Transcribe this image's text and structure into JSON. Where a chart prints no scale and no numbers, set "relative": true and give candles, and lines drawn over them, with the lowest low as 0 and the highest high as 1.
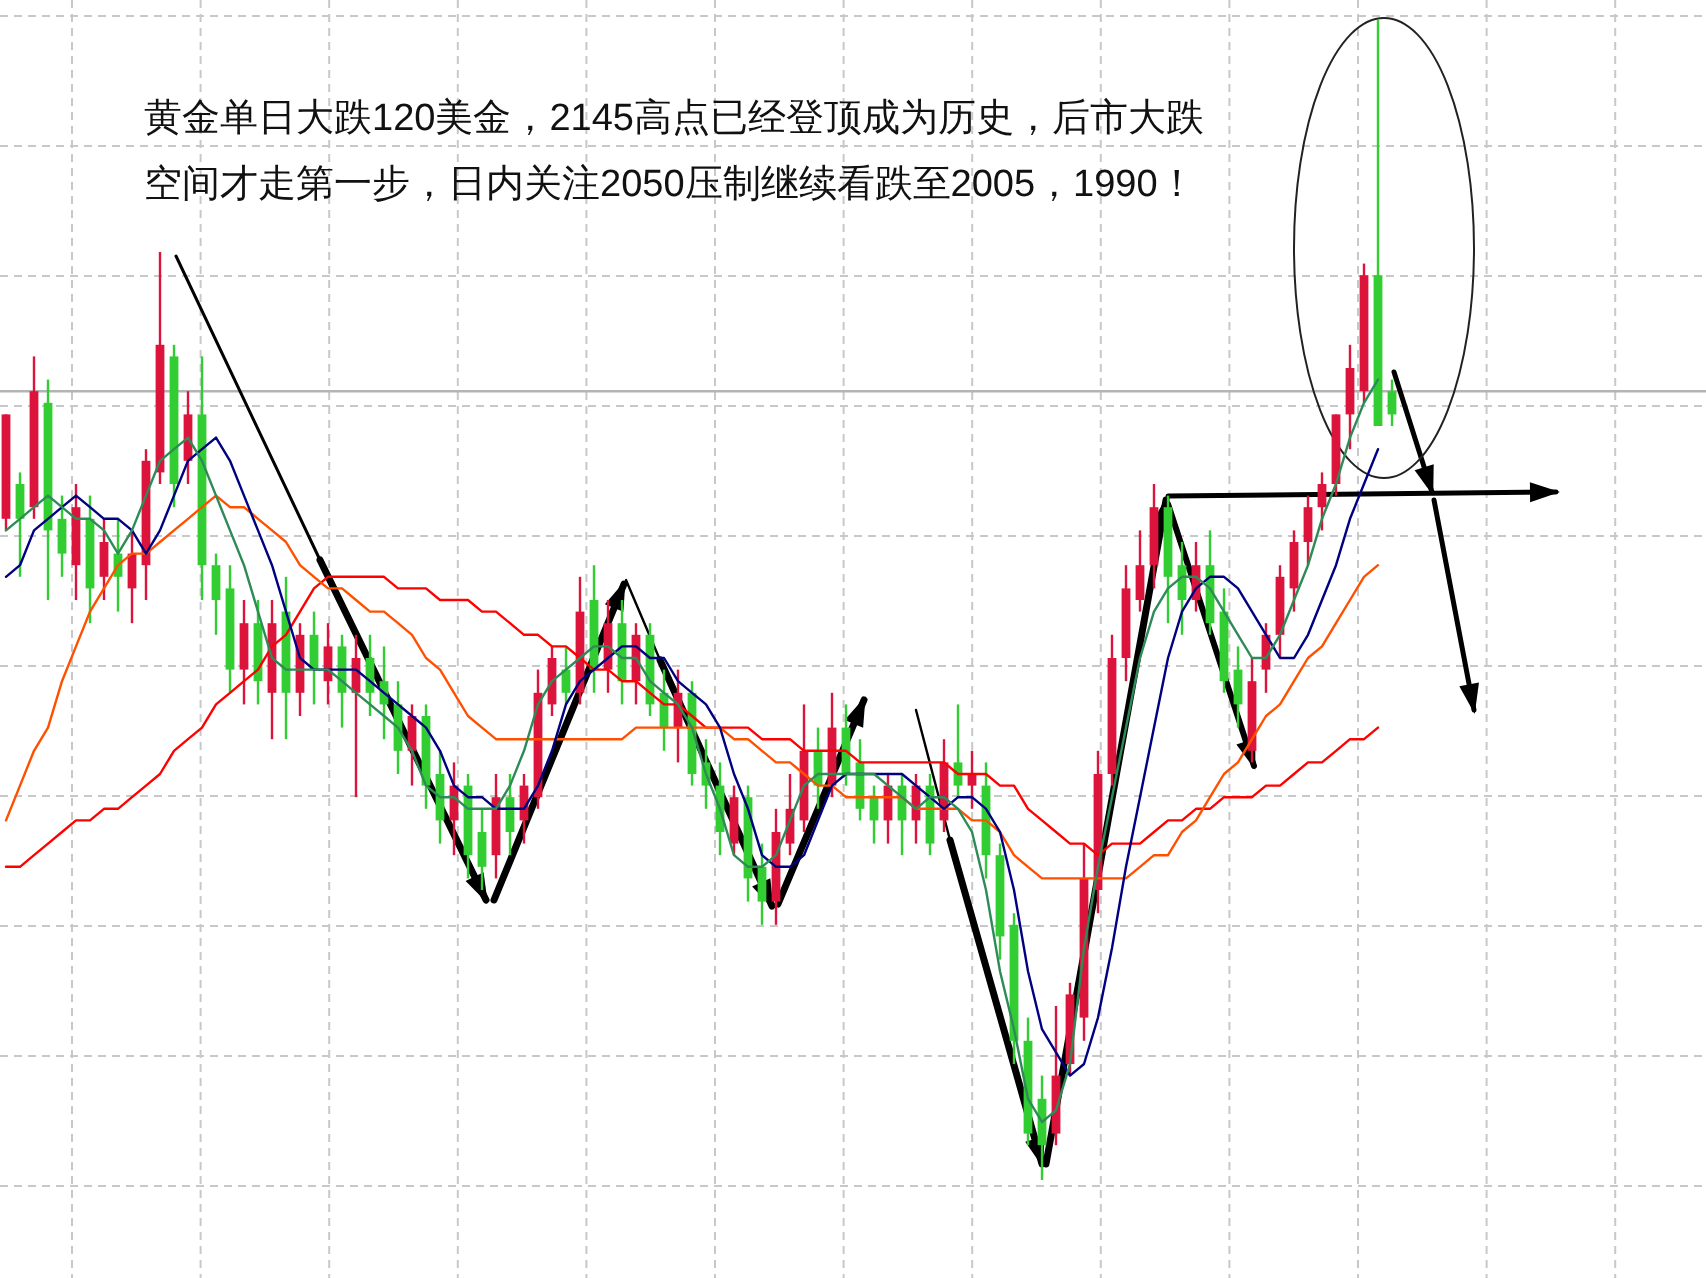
{
  "chart_data": {
    "type": "candlestick",
    "relative": true,
    "grid": true,
    "annotations": [
      "黄金单日大跌120美金，2145高点已经登顶成为历史，后市大跌空间才走第一步，日内关注2050压制继续看跌至2005，1990！"
    ],
    "categories": [
      null,
      null,
      null,
      null,
      null,
      null,
      null,
      null,
      null,
      null,
      null,
      null,
      null,
      null,
      null,
      null,
      null,
      null,
      null,
      null,
      null,
      null,
      null,
      null,
      null,
      null,
      null,
      null,
      null,
      null,
      null,
      null,
      null,
      null,
      null,
      null,
      null,
      null,
      null,
      null,
      null,
      null,
      null,
      null,
      null,
      null,
      null,
      null,
      null,
      null,
      null,
      null,
      null,
      null,
      null,
      null,
      null,
      null,
      null,
      null,
      null,
      null,
      null,
      null,
      null,
      null,
      null,
      null,
      null,
      null,
      null,
      null,
      null,
      null,
      null,
      null,
      null,
      null,
      null,
      null,
      null,
      null,
      null,
      null,
      null,
      null,
      null,
      null,
      null,
      null,
      null,
      null,
      null,
      null,
      null,
      null,
      null,
      null,
      null,
      null
    ],
    "ohlc": [
      [
        0.57,
        0.66,
        0.56,
        0.66
      ],
      [
        0.6,
        0.61,
        0.52,
        0.57
      ],
      [
        0.58,
        0.71,
        0.57,
        0.68
      ],
      [
        0.67,
        0.69,
        0.5,
        0.56
      ],
      [
        0.57,
        0.59,
        0.52,
        0.54
      ],
      [
        0.53,
        0.6,
        0.5,
        0.58
      ],
      [
        0.57,
        0.59,
        0.48,
        0.51
      ],
      [
        0.52,
        0.57,
        0.5,
        0.55
      ],
      [
        0.54,
        0.57,
        0.49,
        0.52
      ],
      [
        0.51,
        0.56,
        0.48,
        0.54
      ],
      [
        0.53,
        0.63,
        0.5,
        0.62
      ],
      [
        0.61,
        0.8,
        0.6,
        0.72
      ],
      [
        0.71,
        0.72,
        0.58,
        0.6
      ],
      [
        0.62,
        0.68,
        0.6,
        0.66
      ],
      [
        0.66,
        0.71,
        0.5,
        0.53
      ],
      [
        0.53,
        0.54,
        0.47,
        0.5
      ],
      [
        0.51,
        0.53,
        0.42,
        0.44
      ],
      [
        0.44,
        0.5,
        0.41,
        0.48
      ],
      [
        0.48,
        0.5,
        0.41,
        0.43
      ],
      [
        0.42,
        0.5,
        0.38,
        0.48
      ],
      [
        0.49,
        0.52,
        0.38,
        0.42
      ],
      [
        0.42,
        0.48,
        0.4,
        0.47
      ],
      [
        0.47,
        0.49,
        0.41,
        0.44
      ],
      [
        0.43,
        0.48,
        0.41,
        0.46
      ],
      [
        0.46,
        0.47,
        0.39,
        0.42
      ],
      [
        0.42,
        0.47,
        0.33,
        0.45
      ],
      [
        0.45,
        0.47,
        0.4,
        0.42
      ],
      [
        0.43,
        0.46,
        0.38,
        0.41
      ],
      [
        0.41,
        0.43,
        0.35,
        0.37
      ],
      [
        0.37,
        0.41,
        0.34,
        0.4
      ],
      [
        0.4,
        0.41,
        0.32,
        0.34
      ],
      [
        0.35,
        0.37,
        0.29,
        0.31
      ],
      [
        0.31,
        0.36,
        0.28,
        0.34
      ],
      [
        0.34,
        0.35,
        0.26,
        0.28
      ],
      [
        0.3,
        0.32,
        0.25,
        0.27
      ],
      [
        0.28,
        0.35,
        0.26,
        0.33
      ],
      [
        0.33,
        0.35,
        0.28,
        0.3
      ],
      [
        0.31,
        0.35,
        0.29,
        0.34
      ],
      [
        0.33,
        0.44,
        0.32,
        0.42
      ],
      [
        0.41,
        0.46,
        0.4,
        0.45
      ],
      [
        0.44,
        0.46,
        0.41,
        0.42
      ],
      [
        0.42,
        0.52,
        0.41,
        0.49
      ],
      [
        0.5,
        0.53,
        0.42,
        0.44
      ],
      [
        0.44,
        0.5,
        0.42,
        0.48
      ],
      [
        0.48,
        0.5,
        0.41,
        0.43
      ],
      [
        0.43,
        0.48,
        0.41,
        0.47
      ],
      [
        0.47,
        0.48,
        0.4,
        0.41
      ],
      [
        0.42,
        0.44,
        0.37,
        0.39
      ],
      [
        0.39,
        0.44,
        0.36,
        0.42
      ],
      [
        0.42,
        0.43,
        0.34,
        0.35
      ],
      [
        0.36,
        0.38,
        0.32,
        0.34
      ],
      [
        0.34,
        0.36,
        0.28,
        0.3
      ],
      [
        0.29,
        0.34,
        0.28,
        0.33
      ],
      [
        0.33,
        0.34,
        0.24,
        0.26
      ],
      [
        0.27,
        0.29,
        0.22,
        0.24
      ],
      [
        0.24,
        0.32,
        0.22,
        0.3
      ],
      [
        0.29,
        0.35,
        0.28,
        0.32
      ],
      [
        0.31,
        0.41,
        0.3,
        0.37
      ],
      [
        0.37,
        0.39,
        0.32,
        0.34
      ],
      [
        0.34,
        0.42,
        0.33,
        0.39
      ],
      [
        0.39,
        0.41,
        0.34,
        0.35
      ],
      [
        0.36,
        0.38,
        0.31,
        0.32
      ],
      [
        0.33,
        0.34,
        0.29,
        0.31
      ],
      [
        0.31,
        0.35,
        0.29,
        0.34
      ],
      [
        0.34,
        0.35,
        0.28,
        0.31
      ],
      [
        0.31,
        0.35,
        0.29,
        0.34
      ],
      [
        0.34,
        0.35,
        0.28,
        0.29
      ],
      [
        0.31,
        0.38,
        0.3,
        0.36
      ],
      [
        0.36,
        0.41,
        0.33,
        0.34
      ],
      [
        0.34,
        0.37,
        0.32,
        0.35
      ],
      [
        0.34,
        0.36,
        0.26,
        0.28
      ],
      [
        0.28,
        0.29,
        0.19,
        0.21
      ],
      [
        0.22,
        0.23,
        0.1,
        0.12
      ],
      [
        0.12,
        0.14,
        0.03,
        0.04
      ],
      [
        0.07,
        0.09,
        0.0,
        0.03
      ],
      [
        0.04,
        0.15,
        0.03,
        0.09
      ],
      [
        0.1,
        0.17,
        0.09,
        0.16
      ],
      [
        0.14,
        0.29,
        0.12,
        0.26
      ],
      [
        0.25,
        0.37,
        0.23,
        0.35
      ],
      [
        0.35,
        0.47,
        0.34,
        0.45
      ],
      [
        0.45,
        0.53,
        0.43,
        0.51
      ],
      [
        0.5,
        0.56,
        0.49,
        0.53
      ],
      [
        0.53,
        0.6,
        0.51,
        0.58
      ],
      [
        0.58,
        0.59,
        0.48,
        0.52
      ],
      [
        0.53,
        0.55,
        0.47,
        0.5
      ],
      [
        0.5,
        0.55,
        0.49,
        0.53
      ],
      [
        0.53,
        0.56,
        0.47,
        0.48
      ],
      [
        0.49,
        0.51,
        0.42,
        0.43
      ],
      [
        0.44,
        0.46,
        0.39,
        0.41
      ],
      [
        0.37,
        0.45,
        0.36,
        0.43
      ],
      [
        0.44,
        0.48,
        0.42,
        0.47
      ],
      [
        0.47,
        0.53,
        0.45,
        0.52
      ],
      [
        0.51,
        0.56,
        0.49,
        0.55
      ],
      [
        0.55,
        0.59,
        0.53,
        0.58
      ],
      [
        0.58,
        0.61,
        0.56,
        0.6
      ],
      [
        0.6,
        0.66,
        0.59,
        0.66
      ],
      [
        0.66,
        0.72,
        0.63,
        0.7
      ],
      [
        0.68,
        0.79,
        0.67,
        0.78
      ],
      [
        0.78,
        1.0,
        0.65,
        0.65
      ],
      [
        0.68,
        0.69,
        0.65,
        0.66
      ]
    ],
    "colors": [
      "#dc143c",
      "#32cd32",
      "#dc143c",
      "#32cd32",
      "#32cd32",
      "#dc143c",
      "#32cd32",
      "#dc143c",
      "#32cd32",
      "#dc143c",
      "#dc143c",
      "#dc143c",
      "#32cd32",
      "#dc143c",
      "#32cd32",
      "#32cd32",
      "#32cd32",
      "#dc143c",
      "#32cd32",
      "#dc143c",
      "#32cd32",
      "#dc143c",
      "#32cd32",
      "#dc143c",
      "#32cd32",
      "#dc143c",
      "#32cd32",
      "#32cd32",
      "#32cd32",
      "#dc143c",
      "#32cd32",
      "#32cd32",
      "#dc143c",
      "#32cd32",
      "#32cd32",
      "#dc143c",
      "#32cd32",
      "#dc143c",
      "#dc143c",
      "#dc143c",
      "#32cd32",
      "#dc143c",
      "#32cd32",
      "#dc143c",
      "#32cd32",
      "#dc143c",
      "#32cd32",
      "#32cd32",
      "#dc143c",
      "#32cd32",
      "#32cd32",
      "#32cd32",
      "#dc143c",
      "#32cd32",
      "#32cd32",
      "#dc143c",
      "#dc143c",
      "#dc143c",
      "#32cd32",
      "#dc143c",
      "#32cd32",
      "#32cd32",
      "#32cd32",
      "#dc143c",
      "#32cd32",
      "#dc143c",
      "#32cd32",
      "#dc143c",
      "#32cd32",
      "#dc143c",
      "#32cd32",
      "#32cd32",
      "#32cd32",
      "#32cd32",
      "#32cd32",
      "#dc143c",
      "#dc143c",
      "#dc143c",
      "#dc143c",
      "#dc143c",
      "#dc143c",
      "#dc143c",
      "#dc143c",
      "#32cd32",
      "#32cd32",
      "#dc143c",
      "#32cd32",
      "#32cd32",
      "#32cd32",
      "#dc143c",
      "#dc143c",
      "#dc143c",
      "#dc143c",
      "#dc143c",
      "#dc143c",
      "#dc143c",
      "#dc143c",
      "#dc143c",
      "#32cd32",
      "#32cd32"
    ],
    "ref_lines": [
      {
        "axis": "y",
        "value": 0.68,
        "color": "#b4b4b4"
      }
    ],
    "series": [
      {
        "type": "line",
        "color": "#ff0000",
        "values": [
          0.27,
          0.27,
          0.28,
          0.29,
          0.3,
          0.31,
          0.31,
          0.32,
          0.32,
          0.33,
          0.34,
          0.35,
          0.37,
          0.38,
          0.39,
          0.41,
          0.42,
          0.43,
          0.44,
          0.46,
          0.47,
          0.49,
          0.51,
          0.52,
          0.52,
          0.52,
          0.52,
          0.52,
          0.51,
          0.51,
          0.51,
          0.5,
          0.5,
          0.5,
          0.49,
          0.49,
          0.48,
          0.47,
          0.47,
          0.46,
          0.46,
          0.45,
          0.44,
          0.44,
          0.43,
          0.43,
          0.42,
          0.41,
          0.41,
          0.4,
          0.39,
          0.39,
          0.39,
          0.39,
          0.38,
          0.38,
          0.38,
          0.37,
          0.37,
          0.37,
          0.37,
          0.36,
          0.36,
          0.36,
          0.36,
          0.36,
          0.36,
          0.36,
          0.35,
          0.35,
          0.35,
          0.34,
          0.34,
          0.32,
          0.31,
          0.3,
          0.29,
          0.29,
          0.28,
          0.29,
          0.29,
          0.29,
          0.3,
          0.31,
          0.31,
          0.32,
          0.32,
          0.33,
          0.33,
          0.33,
          0.34,
          0.34,
          0.35,
          0.36,
          0.36,
          0.37,
          0.38,
          0.38,
          0.39,
          null
        ]
      },
      {
        "type": "line",
        "color": "#ff5000",
        "values": [
          0.31,
          0.34,
          0.37,
          0.39,
          0.43,
          0.46,
          0.49,
          0.51,
          0.53,
          0.54,
          0.54,
          0.55,
          0.56,
          0.57,
          0.58,
          0.59,
          0.58,
          0.58,
          0.57,
          0.56,
          0.55,
          0.53,
          0.52,
          0.51,
          0.51,
          0.5,
          0.49,
          0.49,
          0.48,
          0.47,
          0.45,
          0.44,
          0.42,
          0.4,
          0.39,
          0.38,
          0.38,
          0.38,
          0.38,
          0.38,
          0.38,
          0.38,
          0.38,
          0.38,
          0.38,
          0.39,
          0.39,
          0.39,
          0.39,
          0.39,
          0.39,
          0.39,
          0.38,
          0.38,
          0.37,
          0.36,
          0.36,
          0.35,
          0.34,
          0.34,
          0.33,
          0.33,
          0.33,
          0.33,
          0.33,
          0.32,
          0.32,
          0.32,
          0.32,
          0.31,
          0.31,
          0.3,
          0.28,
          0.27,
          0.26,
          0.26,
          0.26,
          0.26,
          0.26,
          0.26,
          0.26,
          0.27,
          0.28,
          0.28,
          0.3,
          0.31,
          0.33,
          0.35,
          0.36,
          0.38,
          0.4,
          0.41,
          0.43,
          0.45,
          0.46,
          0.48,
          0.5,
          0.52,
          0.53,
          null
        ]
      },
      {
        "type": "line",
        "color": "#000080",
        "values": [
          0.52,
          0.53,
          0.56,
          0.57,
          0.58,
          0.59,
          0.58,
          0.57,
          0.57,
          0.56,
          0.54,
          0.56,
          0.59,
          0.62,
          0.63,
          0.64,
          0.62,
          0.59,
          0.56,
          0.53,
          0.49,
          0.45,
          0.44,
          0.44,
          0.44,
          0.44,
          0.43,
          0.42,
          0.41,
          0.4,
          0.39,
          0.37,
          0.34,
          0.33,
          0.33,
          0.32,
          0.32,
          0.32,
          0.34,
          0.37,
          0.41,
          0.43,
          0.44,
          0.45,
          0.46,
          0.46,
          0.45,
          0.45,
          0.43,
          0.42,
          0.41,
          0.39,
          0.35,
          0.32,
          0.28,
          0.27,
          0.27,
          0.28,
          0.31,
          0.34,
          0.35,
          0.35,
          0.35,
          0.35,
          0.35,
          0.34,
          0.33,
          0.32,
          0.33,
          0.33,
          0.32,
          0.3,
          0.25,
          0.18,
          0.13,
          0.11,
          0.09,
          0.1,
          0.14,
          0.2,
          0.27,
          0.33,
          0.39,
          0.45,
          0.49,
          0.51,
          0.52,
          0.52,
          0.51,
          0.49,
          0.47,
          0.45,
          0.45,
          0.47,
          0.5,
          0.53,
          0.57,
          0.6,
          0.63,
          null
        ]
      },
      {
        "type": "line",
        "color": "#2e8b57",
        "values": [
          0.56,
          0.57,
          0.58,
          0.59,
          0.58,
          0.57,
          0.57,
          0.56,
          0.54,
          0.56,
          0.59,
          0.62,
          0.63,
          0.64,
          0.62,
          0.59,
          0.56,
          0.53,
          0.49,
          0.45,
          0.44,
          0.44,
          0.44,
          0.44,
          0.43,
          0.42,
          0.41,
          0.4,
          0.39,
          0.37,
          0.34,
          0.33,
          0.33,
          0.32,
          0.32,
          0.32,
          0.34,
          0.37,
          0.41,
          0.43,
          0.44,
          0.45,
          0.46,
          0.46,
          0.45,
          0.45,
          0.43,
          0.42,
          0.41,
          0.39,
          0.35,
          0.32,
          0.28,
          0.27,
          0.27,
          0.28,
          0.31,
          0.34,
          0.35,
          0.35,
          0.35,
          0.35,
          0.35,
          0.34,
          0.33,
          0.32,
          0.33,
          0.33,
          0.32,
          0.3,
          0.25,
          0.18,
          0.13,
          0.07,
          0.05,
          0.06,
          0.1,
          0.2,
          0.27,
          0.33,
          0.39,
          0.45,
          0.49,
          0.51,
          0.52,
          0.52,
          0.51,
          0.49,
          0.47,
          0.45,
          0.45,
          0.47,
          0.5,
          0.53,
          0.57,
          0.6,
          0.64,
          0.67,
          0.69,
          null
        ]
      }
    ]
  }
}
